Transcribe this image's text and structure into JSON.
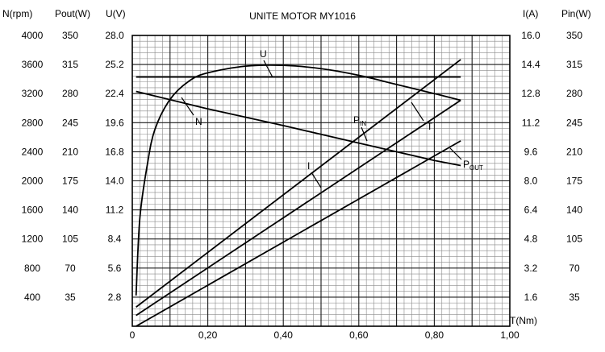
{
  "chart_data": {
    "type": "line",
    "title": "UNITE MOTOR MY1016",
    "xlabel": "T(Nm)",
    "x_ticks": [
      "0",
      "0,20",
      "0,40",
      "0,60",
      "0,80",
      "1,00"
    ],
    "xlim": [
      0,
      1.0
    ],
    "left_axes": [
      {
        "label": "N(rpm)",
        "ticks": [
          "4000",
          "3600",
          "3200",
          "2800",
          "2400",
          "2000",
          "1600",
          "1200",
          "800",
          "400"
        ],
        "range": [
          0,
          4000
        ]
      },
      {
        "label": "Pout(W)",
        "ticks": [
          "350",
          "315",
          "280",
          "245",
          "210",
          "175",
          "140",
          "105",
          "70",
          "35"
        ],
        "range": [
          0,
          350
        ]
      },
      {
        "label": "U(V)",
        "ticks": [
          "28.0",
          "25.2",
          "22.4",
          "19.6",
          "16.8",
          "14.0",
          "11.2",
          "8.4",
          "5.6",
          "2.8"
        ],
        "range": [
          0,
          28
        ]
      }
    ],
    "right_axes": [
      {
        "label": "I(A)",
        "ticks": [
          "16.0",
          "14.4",
          "12.8",
          "11.2",
          "9.6",
          "8.0",
          "6.4",
          "4.8",
          "3.2",
          "1.6"
        ],
        "range": [
          0,
          16
        ]
      },
      {
        "label": "Pin(W)",
        "ticks": [
          "350",
          "315",
          "280",
          "245",
          "210",
          "175",
          "140",
          "105",
          "70",
          "35"
        ],
        "range": [
          0,
          350
        ]
      }
    ],
    "grid": true,
    "series": [
      {
        "name": "U",
        "axis": "U(V)",
        "x": [
          0.01,
          0.87
        ],
        "y": [
          24.0,
          24.0
        ]
      },
      {
        "name": "N",
        "axis": "N(rpm)",
        "x": [
          0.01,
          0.2,
          0.4,
          0.6,
          0.8,
          0.87
        ],
        "y": [
          3230,
          2990,
          2760,
          2520,
          2280,
          2210
        ]
      },
      {
        "name": "T",
        "axis": "Pin(W)",
        "x": [
          0.01,
          0.87
        ],
        "y": [
          23,
          321
        ]
      },
      {
        "name": "P_IN",
        "axis": "Pin(W)",
        "x": [
          0.01,
          0.87
        ],
        "y": [
          13,
          272
        ]
      },
      {
        "name": "I",
        "axis": "I(A)",
        "x": [
          0.01,
          0.87
        ],
        "y": [
          0.0,
          10.2
        ]
      },
      {
        "name": "P_OUT",
        "axis": "Pout(W)",
        "x": [
          0.01,
          0.02,
          0.04,
          0.06,
          0.1,
          0.15,
          0.2,
          0.3,
          0.4,
          0.5,
          0.6,
          0.7,
          0.8,
          0.87
        ],
        "y": [
          37,
          130,
          195,
          237,
          273,
          295,
          305,
          313,
          314,
          310,
          302,
          291,
          280,
          272
        ]
      }
    ],
    "curve_labels": [
      {
        "text": "U",
        "sub": ""
      },
      {
        "text": "N",
        "sub": ""
      },
      {
        "text": "T",
        "sub": ""
      },
      {
        "text": "P",
        "sub": "IN"
      },
      {
        "text": "I",
        "sub": ""
      },
      {
        "text": "P",
        "sub": "OUT"
      }
    ]
  }
}
